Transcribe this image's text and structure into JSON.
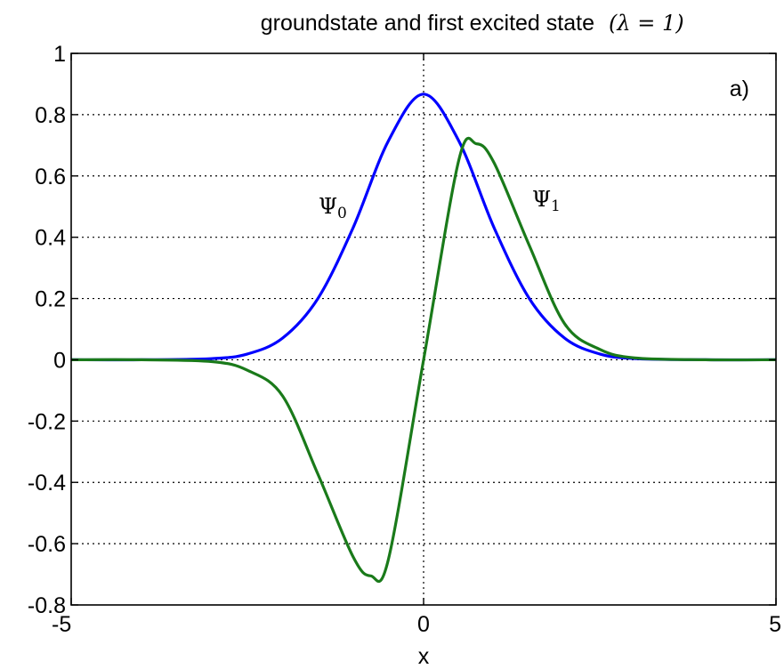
{
  "chart_data": {
    "type": "line",
    "title": "groundstate and first excited state",
    "title_math": "(λ = 1)",
    "xlabel": "x",
    "ylabel": "",
    "xlim": [
      -5,
      5
    ],
    "ylim": [
      -0.8,
      1
    ],
    "x_ticks": [
      -5,
      0,
      5
    ],
    "y_ticks": [
      -0.8,
      -0.6,
      -0.4,
      -0.2,
      0,
      0.2,
      0.4,
      0.6,
      0.8,
      1
    ],
    "grid": true,
    "panel_label": "a)",
    "series": [
      {
        "name": "Ψ0",
        "symbol": "Ψ",
        "subscript": "0",
        "color": "#0000ff",
        "x": [
          -5,
          -4,
          -3,
          -2.5,
          -2,
          -1.5,
          -1,
          -0.5,
          0,
          0.5,
          1,
          1.5,
          2,
          2.5,
          3,
          4,
          5
        ],
        "y": [
          0,
          0,
          0.004,
          0.019,
          0.071,
          0.2,
          0.431,
          0.714,
          0.867,
          0.714,
          0.431,
          0.2,
          0.071,
          0.019,
          0.004,
          0,
          0
        ]
      },
      {
        "name": "Ψ1",
        "symbol": "Ψ",
        "subscript": "1",
        "color": "#1a7a1a",
        "x": [
          -5,
          -4,
          -3,
          -2.5,
          -2,
          -1.5,
          -1,
          -0.75,
          -0.5,
          0,
          0.5,
          0.75,
          1,
          1.5,
          2,
          2.5,
          3,
          4,
          5
        ],
        "y": [
          0,
          0,
          -0.006,
          -0.034,
          -0.118,
          -0.373,
          -0.643,
          -0.705,
          -0.652,
          0,
          0.652,
          0.705,
          0.643,
          0.373,
          0.118,
          0.034,
          0.006,
          0,
          0
        ]
      }
    ]
  }
}
